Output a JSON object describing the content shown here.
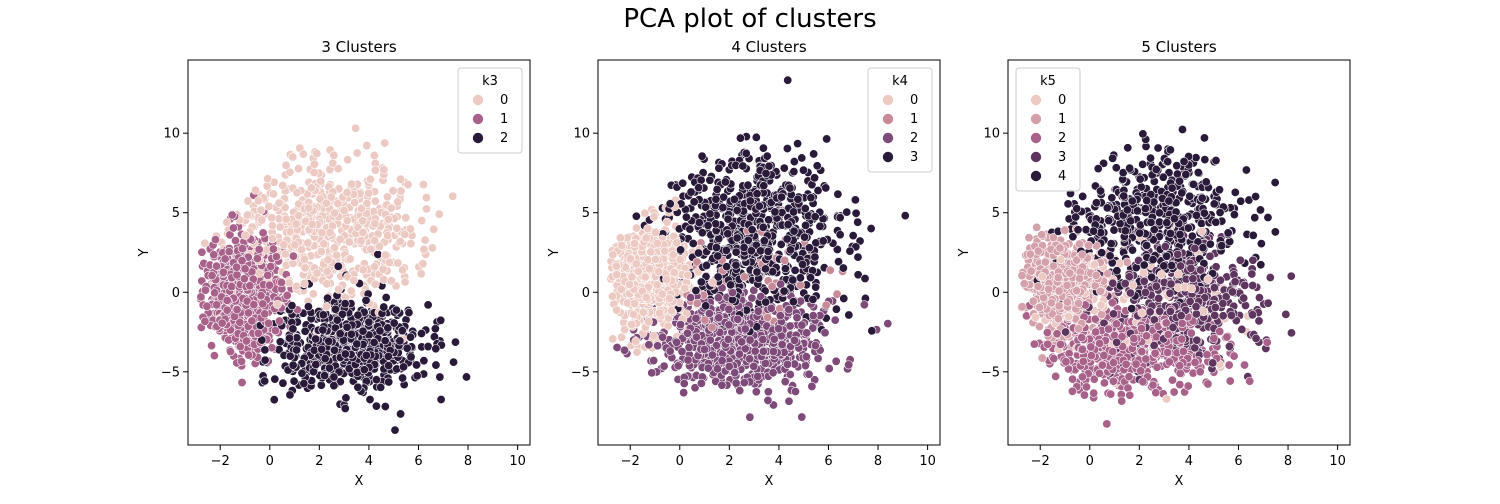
{
  "suptitle": "PCA plot of clusters",
  "chart_data": [
    {
      "type": "scatter",
      "title": "3 Clusters",
      "xlabel": "X",
      "ylabel": "Y",
      "xlim": [
        -3.3,
        10.5
      ],
      "ylim": [
        -9.6,
        14.6
      ],
      "xticks": [
        -2,
        0,
        2,
        4,
        6,
        8,
        10
      ],
      "yticks": [
        -5,
        0,
        5,
        10
      ],
      "legend": {
        "title": "k3",
        "placement": "top-right",
        "labels": [
          "0",
          "1",
          "2"
        ]
      },
      "palette": [
        "#ecc9c2",
        "#a8628a",
        "#2a1a3a"
      ],
      "clusters": [
        {
          "label": "0",
          "center": [
            2.2,
            3.8
          ],
          "spread": [
            1.9,
            2.3
          ],
          "count": 620
        },
        {
          "label": "1",
          "center": [
            -1.1,
            0.0
          ],
          "spread": [
            0.8,
            1.8
          ],
          "count": 700
        },
        {
          "label": "2",
          "center": [
            3.2,
            -3.3
          ],
          "spread": [
            1.5,
            1.5
          ],
          "count": 650
        }
      ]
    },
    {
      "type": "scatter",
      "title": "4 Clusters",
      "xlabel": "X",
      "ylabel": "Y",
      "xlim": [
        -3.3,
        10.5
      ],
      "ylim": [
        -9.6,
        14.6
      ],
      "xticks": [
        -2,
        0,
        2,
        4,
        6,
        8,
        10
      ],
      "yticks": [
        -5,
        0,
        5,
        10
      ],
      "legend": {
        "title": "k4",
        "placement": "top-right",
        "labels": [
          "0",
          "1",
          "2",
          "3"
        ]
      },
      "palette": [
        "#ecc9c2",
        "#c98a98",
        "#7d4a79",
        "#2a1a3a"
      ],
      "clusters": [
        {
          "label": "0",
          "center": [
            -1.2,
            0.8
          ],
          "spread": [
            0.8,
            1.7
          ],
          "count": 600
        },
        {
          "label": "1",
          "center": [
            2.0,
            1.0
          ],
          "spread": [
            1.6,
            2.0
          ],
          "count": 60
        },
        {
          "label": "2",
          "center": [
            2.3,
            -3.2
          ],
          "spread": [
            1.8,
            1.5
          ],
          "count": 700
        },
        {
          "label": "3",
          "center": [
            3.0,
            3.6
          ],
          "spread": [
            1.8,
            2.4
          ],
          "count": 700
        }
      ]
    },
    {
      "type": "scatter",
      "title": "5 Clusters",
      "xlabel": "X",
      "ylabel": "Y",
      "xlim": [
        -3.3,
        10.5
      ],
      "ylim": [
        -9.6,
        14.6
      ],
      "xticks": [
        -2,
        0,
        2,
        4,
        6,
        8,
        10
      ],
      "yticks": [
        -5,
        0,
        5,
        10
      ],
      "legend": {
        "title": "k5",
        "placement": "top-left",
        "labels": [
          "0",
          "1",
          "2",
          "3",
          "4"
        ]
      },
      "palette": [
        "#ecc9c2",
        "#d4a0aa",
        "#a8628a",
        "#5e355e",
        "#2a1a3a"
      ],
      "clusters": [
        {
          "label": "0",
          "center": [
            1.5,
            -1.0
          ],
          "spread": [
            2.2,
            2.0
          ],
          "count": 120
        },
        {
          "label": "1",
          "center": [
            -1.1,
            0.5
          ],
          "spread": [
            0.8,
            1.4
          ],
          "count": 550
        },
        {
          "label": "2",
          "center": [
            1.6,
            -3.6
          ],
          "spread": [
            1.7,
            1.3
          ],
          "count": 550
        },
        {
          "label": "3",
          "center": [
            3.6,
            -0.6
          ],
          "spread": [
            1.6,
            1.8
          ],
          "count": 450
        },
        {
          "label": "4",
          "center": [
            2.6,
            4.6
          ],
          "spread": [
            1.8,
            2.2
          ],
          "count": 500
        }
      ]
    }
  ]
}
